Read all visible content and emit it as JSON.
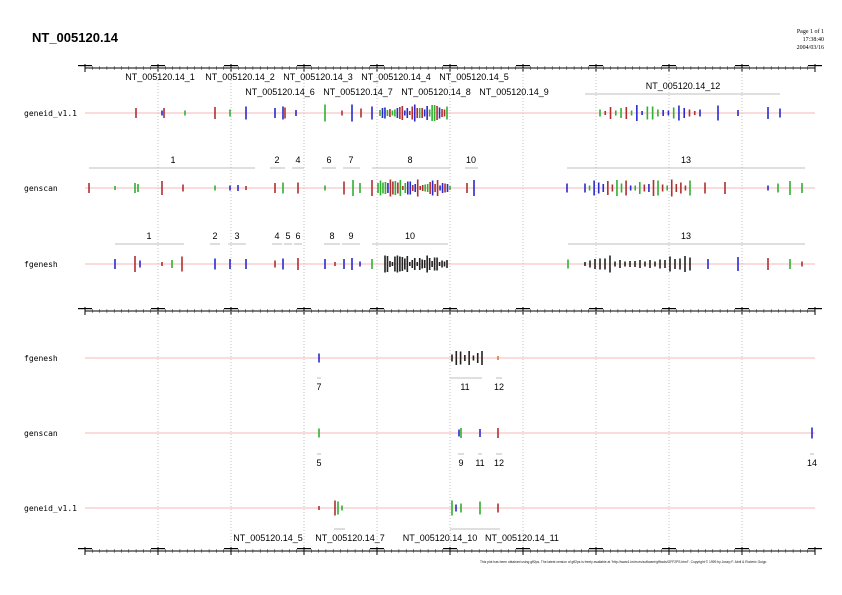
{
  "title": "NT_005120.14",
  "header": {
    "page": "Page 1 of 1",
    "time": "17:38:40",
    "date": "2004/03/16"
  },
  "footer": "This plot has been obtained using gff2ps. The latest version of gff2ps is freely available at \"http://www1.imim.es/software/gfftools/GFF2PS.html\". Copyright © 1999 by Josep F. Abril & Roderic Guigo",
  "top_panel": {
    "tracks": [
      "geneid_v1.1",
      "genscan",
      "fgenesh"
    ],
    "geneid_labels": [
      "NT_005120.14_1",
      "NT_005120.14_2",
      "NT_005120.14_3",
      "NT_005120.14_4",
      "NT_005120.14_5",
      "NT_005120.14_6",
      "NT_005120.14_7",
      "NT_005120.14_8",
      "NT_005120.14_9",
      "NT_005120.14_12"
    ],
    "genscan_labels": [
      "1",
      "2",
      "4",
      "6",
      "7",
      "8",
      "10",
      "13"
    ],
    "fgenesh_labels": [
      "1",
      "2",
      "3",
      "4",
      "5",
      "6",
      "8",
      "9",
      "10",
      "13"
    ]
  },
  "bottom_panel": {
    "tracks": [
      "fgenesh",
      "genscan",
      "geneid_v1.1"
    ],
    "fgenesh_labels": [
      "7",
      "11",
      "12"
    ],
    "genscan_labels": [
      "5",
      "9",
      "11",
      "12",
      "14"
    ],
    "geneid_labels": [
      "NT_005120.14_5",
      "NT_005120.14_7",
      "NT_005120.14_10",
      "NT_005120.14_11"
    ]
  },
  "colors": {
    "track_line": "#f4a0a0",
    "blue": "#2a2ad0",
    "red": "#b03030",
    "green": "#30b030",
    "black": "#222222",
    "orange": "#d08040"
  }
}
